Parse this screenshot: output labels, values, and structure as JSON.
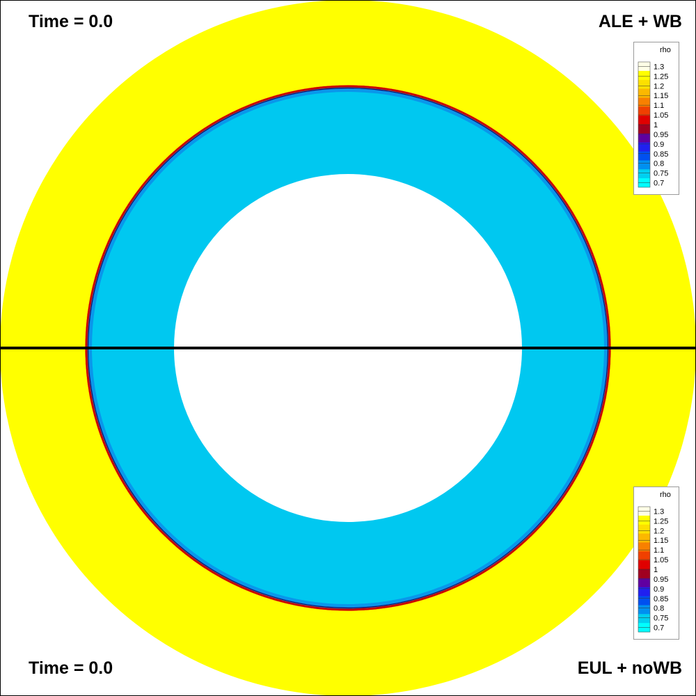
{
  "panels": {
    "top": {
      "time_label": "Time = 0.0",
      "method_label": "ALE + WB"
    },
    "bottom": {
      "time_label": "Time = 0.0",
      "method_label": "EUL + noWB"
    }
  },
  "colors": {
    "outer_ring": "#ffff00",
    "inner_ring": "#00c8f0",
    "interface_line": "#c80000",
    "divider": "#000000",
    "background": "#ffffff"
  },
  "chart_data": {
    "type": "heatmap",
    "variable": "rho",
    "colorbar": {
      "title": "rho",
      "ticks": [
        "1.3",
        "1.25",
        "1.2",
        "1.15",
        "1.1",
        "1.05",
        "1",
        "0.95",
        "0.9",
        "0.85",
        "0.8",
        "0.75",
        "0.7"
      ],
      "range": [
        0.7,
        1.3
      ],
      "colors": [
        "#ffffe6",
        "#ffff00",
        "#fde000",
        "#fbb800",
        "#f88000",
        "#f04000",
        "#e00000",
        "#a00020",
        "#6000a0",
        "#2020f0",
        "#0050f0",
        "#0090f0",
        "#00d0f0",
        "#00ffff"
      ]
    },
    "regions": [
      {
        "name": "outer",
        "rho": 1.25
      },
      {
        "name": "inner",
        "rho": 0.75
      }
    ]
  }
}
